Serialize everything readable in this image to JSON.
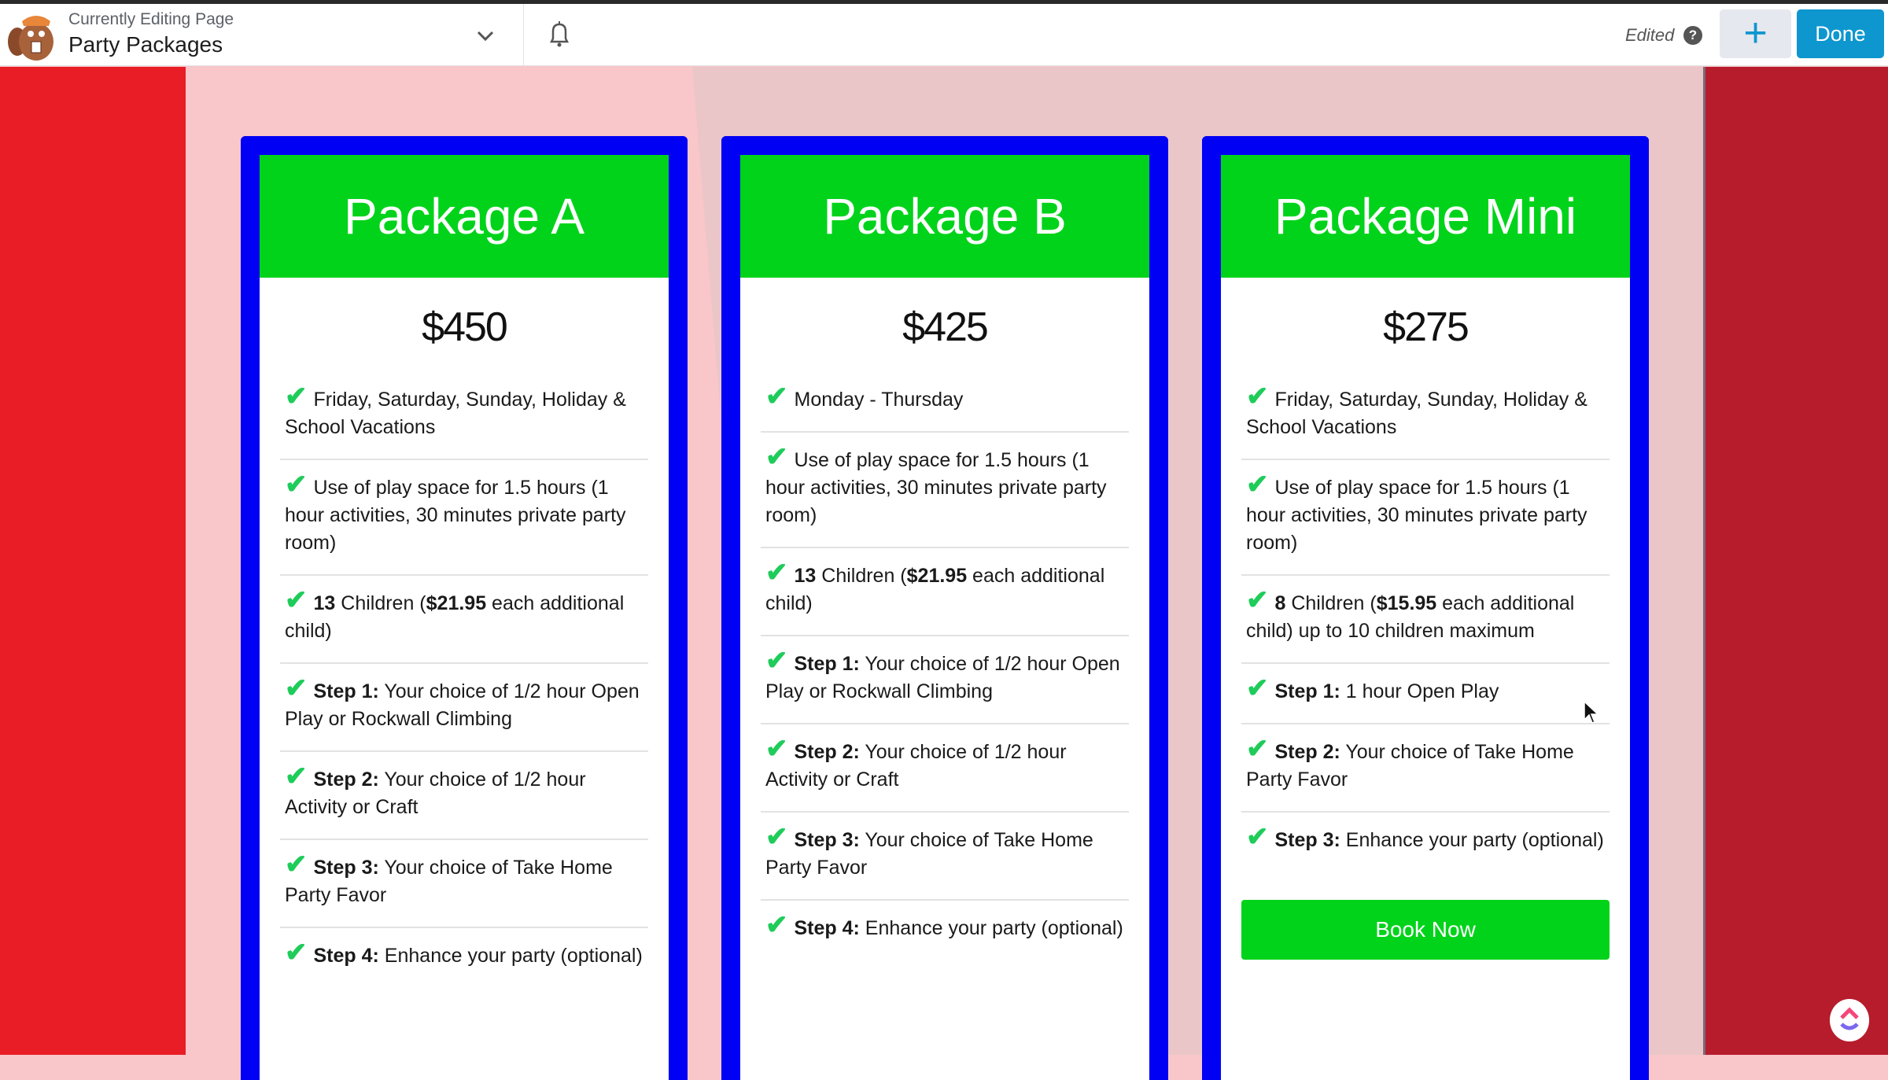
{
  "header": {
    "subtitle": "Currently Editing Page",
    "title": "Party Packages",
    "status": "Edited",
    "help_icon": "?",
    "add_icon": "+",
    "done_label": "Done"
  },
  "colors": {
    "card_border": "#0000f5",
    "card_header": "#00d31a",
    "check": "#1fcc5a",
    "done_button": "#0e96cf",
    "left_bg": "#e81d25",
    "right_bg": "#b71c2c"
  },
  "cards": [
    {
      "name": "Package A",
      "price": "$450",
      "features": [
        [
          {
            "t": "Friday, Saturday, Sunday, Holiday & School Vacations"
          }
        ],
        [
          {
            "t": "Use of play space for 1.5 hours (1 hour activities, 30 minutes private party room)"
          }
        ],
        [
          {
            "b": true,
            "t": "13"
          },
          {
            "t": " Children ("
          },
          {
            "b": true,
            "t": "$21.95"
          },
          {
            "t": " each additional child)"
          }
        ],
        [
          {
            "b": true,
            "t": "Step 1:"
          },
          {
            "t": " Your choice of 1/2 hour Open Play or Rockwall Climbing"
          }
        ],
        [
          {
            "b": true,
            "t": "Step 2:"
          },
          {
            "t": " Your choice of 1/2 hour Activity or Craft"
          }
        ],
        [
          {
            "b": true,
            "t": "Step 3:"
          },
          {
            "t": " Your choice of Take Home Party Favor"
          }
        ],
        [
          {
            "b": true,
            "t": "Step 4:"
          },
          {
            "t": " Enhance your party (optional)"
          }
        ]
      ]
    },
    {
      "name": "Package B",
      "price": "$425",
      "features": [
        [
          {
            "t": "Monday - Thursday"
          }
        ],
        [
          {
            "t": "Use of play space for 1.5 hours (1 hour activities, 30 minutes private party room)"
          }
        ],
        [
          {
            "b": true,
            "t": "13"
          },
          {
            "t": " Children ("
          },
          {
            "b": true,
            "t": "$21.95"
          },
          {
            "t": " each additional child)"
          }
        ],
        [
          {
            "b": true,
            "t": "Step 1:"
          },
          {
            "t": " Your choice of 1/2 hour Open Play or Rockwall Climbing"
          }
        ],
        [
          {
            "b": true,
            "t": "Step 2:"
          },
          {
            "t": " Your choice of 1/2 hour Activity or Craft"
          }
        ],
        [
          {
            "b": true,
            "t": "Step 3:"
          },
          {
            "t": " Your choice of Take Home Party Favor"
          }
        ],
        [
          {
            "b": true,
            "t": "Step 4:"
          },
          {
            "t": " Enhance your party (optional)"
          }
        ]
      ]
    },
    {
      "name": "Package Mini",
      "price": "$275",
      "book_label": "Book Now",
      "features": [
        [
          {
            "t": "Friday, Saturday, Sunday, Holiday & School Vacations"
          }
        ],
        [
          {
            "t": "Use of play space for 1.5 hours (1 hour activities, 30 minutes private party room)"
          }
        ],
        [
          {
            "b": true,
            "t": "8"
          },
          {
            "t": " Children ("
          },
          {
            "b": true,
            "t": "$15.95"
          },
          {
            "t": " each additional child) up to 10 children maximum"
          }
        ],
        [
          {
            "b": true,
            "t": "Step 1:"
          },
          {
            "t": " 1 hour Open Play"
          }
        ],
        [
          {
            "b": true,
            "t": "Step 2:"
          },
          {
            "t": " Your choice of Take Home Party Favor"
          }
        ],
        [
          {
            "b": true,
            "t": "Step 3:"
          },
          {
            "t": " Enhance your party (optional)"
          }
        ]
      ]
    }
  ]
}
